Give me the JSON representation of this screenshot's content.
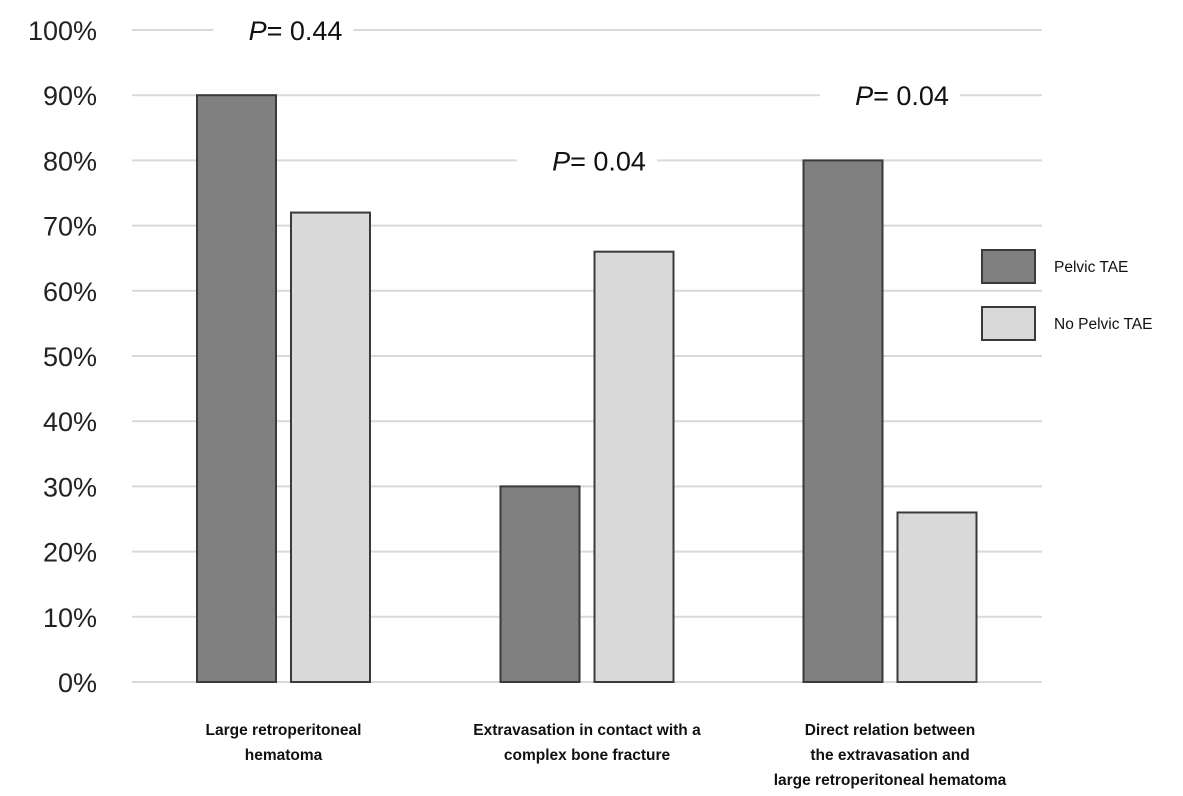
{
  "chart_data": {
    "type": "bar",
    "categories": [
      [
        "Large retroperitoneal",
        "hematoma"
      ],
      [
        "Extravasation in contact with a",
        "complex bone fracture"
      ],
      [
        "Direct relation between",
        "the extravasation and",
        "large retroperitoneal hematoma"
      ]
    ],
    "series": [
      {
        "name": "Pelvic TAE",
        "values": [
          90,
          30,
          80
        ],
        "color": "#808080"
      },
      {
        "name": "No Pelvic TAE",
        "values": [
          72,
          66,
          26
        ],
        "color": "#d9d9d9"
      }
    ],
    "ylim": [
      0,
      100
    ],
    "yticks": [
      "0%",
      "10%",
      "20%",
      "30%",
      "40%",
      "50%",
      "60%",
      "70%",
      "80%",
      "90%",
      "100%"
    ],
    "annotations": [
      {
        "category": 0,
        "prefix": "P",
        "text": "= 0.44",
        "y": 100
      },
      {
        "category": 1,
        "prefix": "P",
        "text": "= 0.04",
        "y": 80
      },
      {
        "category": 2,
        "prefix": "P",
        "text": "= 0.04",
        "y": 90
      }
    ],
    "legend": "right",
    "grid": true,
    "title": "",
    "xlabel": "",
    "ylabel": ""
  }
}
